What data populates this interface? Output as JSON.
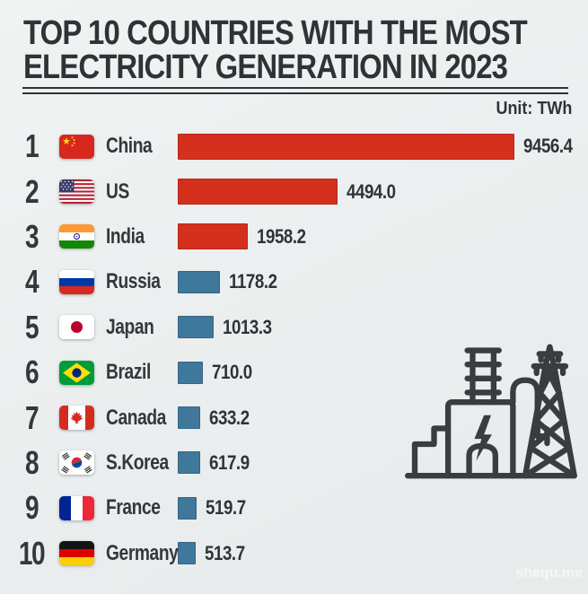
{
  "page": {
    "background": "#edf0f0",
    "text_color": "#2e3337"
  },
  "header": {
    "title_line1": "TOP 10 COUNTRIES WITH THE MOST",
    "title_line2": "ELECTRICITY GENERATION IN 2023",
    "unit_label": "Unit: TWh"
  },
  "watermark": "shequ.me",
  "colors": {
    "top3_bar": "#d52f1e",
    "other_bar": "#40789b",
    "icon": "#383d41"
  },
  "chart_data": {
    "type": "bar",
    "orientation": "horizontal",
    "title": "Top 10 Countries with the Most Electricity Generation in 2023",
    "unit": "TWh",
    "categories": [
      "China",
      "US",
      "India",
      "Russia",
      "Japan",
      "Brazil",
      "Canada",
      "S.Korea",
      "France",
      "Germany"
    ],
    "values": [
      9456.4,
      4494.0,
      1958.2,
      1178.2,
      1013.3,
      710.0,
      633.2,
      617.9,
      519.7,
      513.7
    ],
    "value_labels_shown": true,
    "xlim": [
      0,
      9456.4
    ],
    "grid": false,
    "legend": false,
    "bar_color_rule": "ranks 1-3 red, ranks 4-10 steel blue"
  },
  "rows": [
    {
      "rank": "1",
      "country": "China",
      "value": "9456.4",
      "numeric": 9456.4,
      "flag": "cn",
      "flag_icon": "china-flag-icon",
      "color": "#d52f1e",
      "tier": "top"
    },
    {
      "rank": "2",
      "country": "US",
      "value": "4494.0",
      "numeric": 4494.0,
      "flag": "us",
      "flag_icon": "us-flag-icon",
      "color": "#d52f1e",
      "tier": "top"
    },
    {
      "rank": "3",
      "country": "India",
      "value": "1958.2",
      "numeric": 1958.2,
      "flag": "in",
      "flag_icon": "india-flag-icon",
      "color": "#d52f1e",
      "tier": "top"
    },
    {
      "rank": "4",
      "country": "Russia",
      "value": "1178.2",
      "numeric": 1178.2,
      "flag": "ru",
      "flag_icon": "russia-flag-icon",
      "color": "#40789b",
      "tier": "rest"
    },
    {
      "rank": "5",
      "country": "Japan",
      "value": "1013.3",
      "numeric": 1013.3,
      "flag": "jp",
      "flag_icon": "japan-flag-icon",
      "color": "#40789b",
      "tier": "rest"
    },
    {
      "rank": "6",
      "country": "Brazil",
      "value": "710.0",
      "numeric": 710.0,
      "flag": "br",
      "flag_icon": "brazil-flag-icon",
      "color": "#40789b",
      "tier": "rest"
    },
    {
      "rank": "7",
      "country": "Canada",
      "value": "633.2",
      "numeric": 633.2,
      "flag": "ca",
      "flag_icon": "canada-flag-icon",
      "color": "#40789b",
      "tier": "rest"
    },
    {
      "rank": "8",
      "country": "S.Korea",
      "value": "617.9",
      "numeric": 617.9,
      "flag": "kr",
      "flag_icon": "skorea-flag-icon",
      "color": "#40789b",
      "tier": "rest"
    },
    {
      "rank": "9",
      "country": "France",
      "value": "519.7",
      "numeric": 519.7,
      "flag": "fr",
      "flag_icon": "france-flag-icon",
      "color": "#40789b",
      "tier": "rest"
    },
    {
      "rank": "10",
      "country": "Germany",
      "value": "513.7",
      "numeric": 513.7,
      "flag": "de",
      "flag_icon": "germany-flag-icon",
      "color": "#40789b",
      "tier": "rest"
    }
  ],
  "decoration": {
    "icon": "power-plant-and-transmission-tower-icon"
  }
}
